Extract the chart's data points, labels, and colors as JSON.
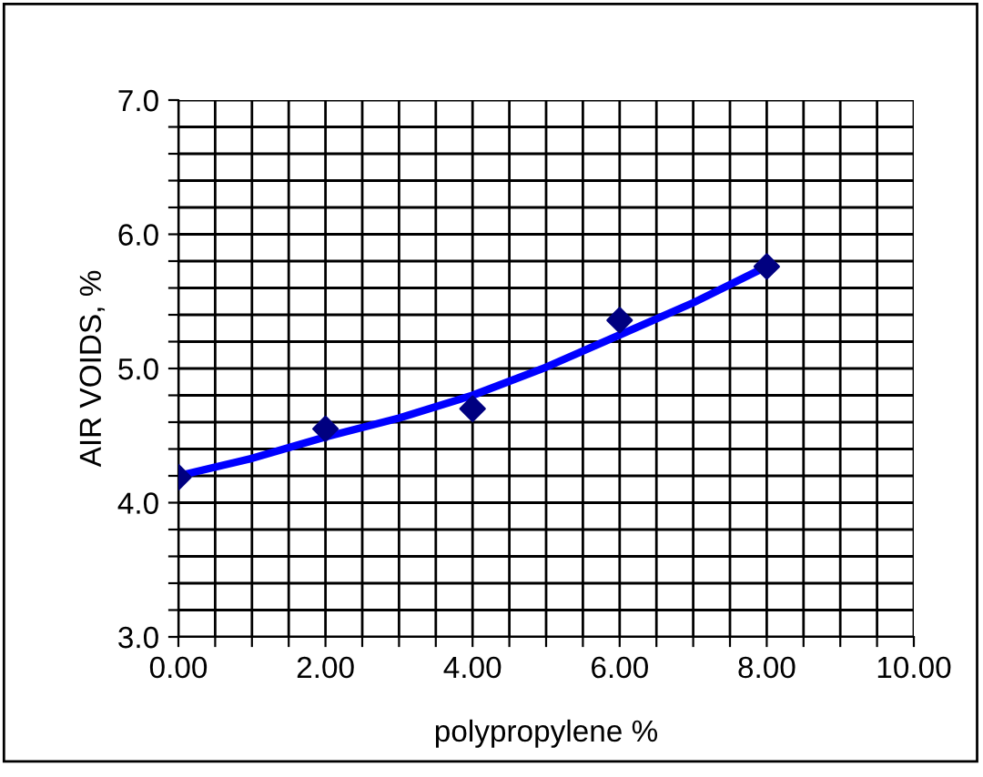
{
  "chart_data": {
    "type": "scatter",
    "xlabel": "polypropylene %",
    "ylabel": "AIR VOIDS, %",
    "x": [
      0,
      2,
      4,
      6,
      8
    ],
    "series": [
      {
        "color": "#000080",
        "marker": "diamond",
        "values": [
          4.19,
          4.55,
          4.7,
          5.36,
          5.76
        ]
      },
      {
        "type": "line",
        "color": "#0000ff",
        "marker": "none",
        "line_style": "solid",
        "x": [
          0,
          1,
          2,
          3,
          4,
          5,
          6,
          7,
          8
        ],
        "values": [
          4.2,
          4.33,
          4.49,
          4.63,
          4.8,
          5.01,
          5.25,
          5.49,
          5.76
        ]
      }
    ],
    "xlim": [
      0,
      10
    ],
    "ylim": [
      3,
      7
    ],
    "xticks": [
      {
        "value": 0,
        "label": "0.00"
      },
      {
        "value": 0.5,
        "label": null
      },
      {
        "value": 1,
        "label": null
      },
      {
        "value": 1.5,
        "label": null
      },
      {
        "value": 2,
        "label": "2.00"
      },
      {
        "value": 2.5,
        "label": null
      },
      {
        "value": 3,
        "label": null
      },
      {
        "value": 3.5,
        "label": null
      },
      {
        "value": 4,
        "label": "4.00"
      },
      {
        "value": 4.5,
        "label": null
      },
      {
        "value": 5,
        "label": null
      },
      {
        "value": 5.5,
        "label": null
      },
      {
        "value": 6,
        "label": "6.00"
      },
      {
        "value": 6.5,
        "label": null
      },
      {
        "value": 7,
        "label": null
      },
      {
        "value": 7.5,
        "label": null
      },
      {
        "value": 8,
        "label": "8.00"
      },
      {
        "value": 8.5,
        "label": null
      },
      {
        "value": 9,
        "label": null
      },
      {
        "value": 9.5,
        "label": null
      },
      {
        "value": 10,
        "label": "10.00"
      }
    ],
    "yticks": [
      {
        "value": 3,
        "label": "3.0"
      },
      {
        "value": 3.2,
        "label": null
      },
      {
        "value": 3.4,
        "label": null
      },
      {
        "value": 3.6,
        "label": null
      },
      {
        "value": 3.8,
        "label": null
      },
      {
        "value": 4,
        "label": "4.0"
      },
      {
        "value": 4.2,
        "label": null
      },
      {
        "value": 4.4,
        "label": null
      },
      {
        "value": 4.6,
        "label": null
      },
      {
        "value": 4.8,
        "label": null
      },
      {
        "value": 5,
        "label": "5.0"
      },
      {
        "value": 5.2,
        "label": null
      },
      {
        "value": 5.4,
        "label": null
      },
      {
        "value": 5.6,
        "label": null
      },
      {
        "value": 5.8,
        "label": null
      },
      {
        "value": 6,
        "label": "6.0"
      },
      {
        "value": 6.2,
        "label": null
      },
      {
        "value": 6.4,
        "label": null
      },
      {
        "value": 6.6,
        "label": null
      },
      {
        "value": 6.8,
        "label": null
      },
      {
        "value": 7,
        "label": "7.0"
      }
    ],
    "grid": true,
    "legend": false
  }
}
